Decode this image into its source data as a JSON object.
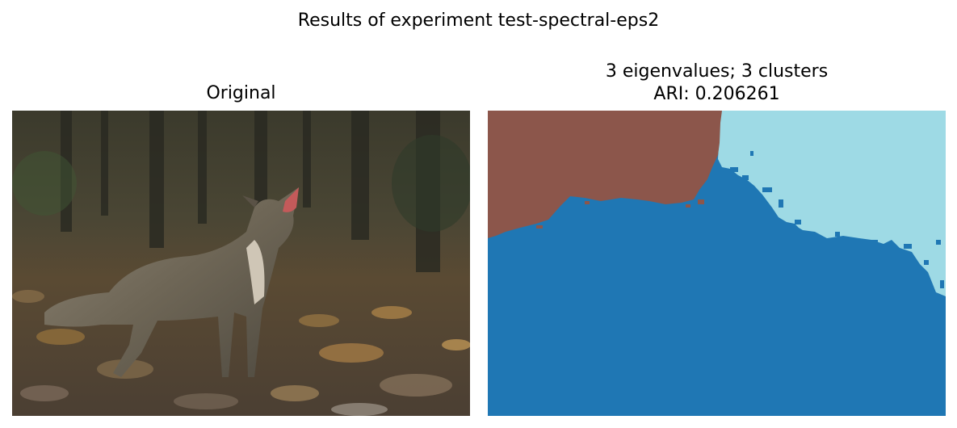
{
  "figure": {
    "suptitle": "Results of experiment test-spectral-eps2"
  },
  "left_panel": {
    "title": "Original",
    "content": "photograph of a howling coyote standing on leaf-covered rocky ground with trees in background"
  },
  "right_panel": {
    "title_line1": "3 eigenvalues; 3 clusters",
    "title_line2": "ARI: 0.206261",
    "colors": {
      "cluster_brown": "#8c564b",
      "cluster_light_blue": "#9edae5",
      "cluster_blue": "#1f77b4"
    }
  }
}
